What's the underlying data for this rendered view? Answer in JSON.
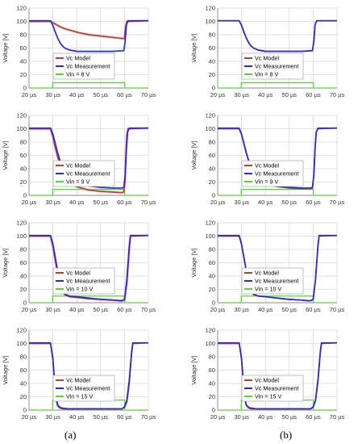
{
  "captions": [
    "(a)",
    "(b)"
  ],
  "colors": {
    "model": "#b0442a",
    "measurement": "#2a2ad0",
    "vin": "#55d63a",
    "glow": "#f5a0c8",
    "grid": "#d9d9d9",
    "axis": "#888888"
  },
  "chart_data": [
    {
      "type": "line",
      "panel": "a1",
      "xlabel": "",
      "ylabel": "Voltage [V]",
      "xlim": [
        20,
        70
      ],
      "ylim": [
        0,
        120
      ],
      "x_ticks": [
        "20 µs",
        "30 µs",
        "40 µs",
        "50 µs",
        "60 µs",
        "70 µs"
      ],
      "y_ticks": [
        "0",
        "20",
        "40",
        "60",
        "80",
        "100",
        "120"
      ],
      "grid": true,
      "legend": "top-center",
      "series": [
        {
          "name": "Vc Model",
          "x": [
            20,
            29,
            31,
            33,
            35,
            38,
            41,
            45,
            50,
            55,
            60,
            60.4,
            61,
            70
          ],
          "y": [
            100,
            100,
            96,
            92,
            89,
            86,
            83,
            80,
            78,
            76,
            74,
            90,
            100,
            101
          ]
        },
        {
          "name": "Vc Measurement",
          "x": [
            20,
            29,
            30,
            31,
            32,
            33,
            34,
            35,
            37,
            40,
            45,
            50,
            55,
            59.7,
            60.3,
            60.8,
            61.5,
            70
          ],
          "y": [
            101,
            101,
            94,
            84,
            75,
            68,
            63,
            60,
            57,
            55,
            55,
            55,
            55,
            56,
            70,
            95,
            101,
            101
          ]
        },
        {
          "name": "Vin = 8 V",
          "x": [
            20,
            29.9,
            29.9,
            60.1,
            60.1,
            70
          ],
          "y": [
            0,
            0,
            8,
            8,
            0,
            0
          ]
        }
      ]
    },
    {
      "type": "line",
      "panel": "b1",
      "xlabel": "",
      "ylabel": "Voltage [V]",
      "xlim": [
        20,
        70
      ],
      "ylim": [
        0,
        120
      ],
      "x_ticks": [
        "20 µs",
        "30 µs",
        "40 µs",
        "50 µs",
        "60 µs",
        "70 µs"
      ],
      "y_ticks": [
        "0",
        "20",
        "40",
        "60",
        "80",
        "100",
        "120"
      ],
      "grid": true,
      "legend": "top-center",
      "series": [
        {
          "name": "Vc Model",
          "x": [
            20,
            29,
            30,
            31,
            32,
            33,
            34,
            35,
            37,
            40,
            45,
            50,
            55,
            59.7,
            60.3,
            60.8,
            61.5,
            70
          ],
          "y": [
            101,
            101,
            94,
            84,
            75,
            68,
            63,
            60,
            57,
            55,
            55,
            55,
            55,
            56,
            70,
            95,
            101,
            101
          ]
        },
        {
          "name": "Vc Measurement",
          "x": [
            20,
            29,
            30,
            31,
            32,
            33,
            34,
            35,
            37,
            40,
            45,
            50,
            55,
            59.7,
            60.3,
            60.8,
            61.5,
            70
          ],
          "y": [
            101,
            101,
            94,
            84,
            75,
            68,
            63,
            60,
            57,
            55,
            55,
            55,
            55,
            56,
            70,
            95,
            101,
            101
          ]
        },
        {
          "name": "Vin = 8 V",
          "x": [
            20,
            29.9,
            29.9,
            60.1,
            60.1,
            70
          ],
          "y": [
            0,
            0,
            8,
            8,
            0,
            0
          ]
        }
      ]
    },
    {
      "type": "line",
      "panel": "a2",
      "xlabel": "",
      "ylabel": "Voltage [V]",
      "xlim": [
        20,
        70
      ],
      "ylim": [
        0,
        120
      ],
      "x_ticks": [
        "20 µs",
        "30 µs",
        "40 µs",
        "50 µs",
        "60 µs",
        "70 µs"
      ],
      "y_ticks": [
        "0",
        "20",
        "40",
        "60",
        "80",
        "100",
        "120"
      ],
      "grid": true,
      "legend": "top-center",
      "series": [
        {
          "name": "Vc Model",
          "x": [
            20,
            29,
            30,
            31,
            32,
            33,
            34,
            35,
            36,
            38,
            40,
            45,
            50,
            55,
            59,
            59.7,
            60.2,
            60.6,
            61,
            61.5,
            70
          ],
          "y": [
            100,
            100,
            88,
            72,
            58,
            46,
            37,
            30,
            25,
            18,
            13,
            8,
            6,
            5,
            4,
            5,
            20,
            60,
            90,
            100,
            101
          ]
        },
        {
          "name": "Vc Measurement",
          "x": [
            20,
            29,
            30,
            31,
            32,
            33,
            34,
            35,
            36,
            38,
            40,
            45,
            50,
            55,
            59,
            59.7,
            60.3,
            60.8,
            61.3,
            62,
            70
          ],
          "y": [
            101,
            101,
            92,
            78,
            64,
            52,
            42,
            35,
            29,
            22,
            18,
            14,
            12,
            11,
            11,
            12,
            30,
            70,
            95,
            101,
            101
          ]
        },
        {
          "name": "Vin = 9 V",
          "x": [
            20,
            29.9,
            29.9,
            60.1,
            60.1,
            70
          ],
          "y": [
            0,
            0,
            9,
            9,
            0,
            0
          ]
        }
      ]
    },
    {
      "type": "line",
      "panel": "b2",
      "xlabel": "",
      "ylabel": "Voltage [V]",
      "xlim": [
        20,
        70
      ],
      "ylim": [
        0,
        120
      ],
      "x_ticks": [
        "20 µs",
        "30 µs",
        "40 µs",
        "50 µs",
        "60 µs",
        "70 µs"
      ],
      "y_ticks": [
        "0",
        "20",
        "40",
        "60",
        "80",
        "100",
        "120"
      ],
      "grid": true,
      "legend": "top-center",
      "series": [
        {
          "name": "Vc Model",
          "x": [
            20,
            29,
            30,
            31,
            32,
            33,
            34,
            35,
            36,
            38,
            40,
            45,
            50,
            55,
            59,
            59.7,
            60.3,
            60.8,
            61.3,
            62,
            70
          ],
          "y": [
            100,
            100,
            91,
            77,
            63,
            51,
            41,
            34,
            28,
            21,
            17,
            13,
            11,
            10,
            10,
            11,
            30,
            70,
            95,
            100,
            101
          ]
        },
        {
          "name": "Vc Measurement",
          "x": [
            20,
            29,
            30,
            31,
            32,
            33,
            34,
            35,
            36,
            38,
            40,
            45,
            50,
            55,
            59,
            59.7,
            60.3,
            60.8,
            61.3,
            62,
            70
          ],
          "y": [
            101,
            101,
            92,
            78,
            64,
            52,
            42,
            35,
            29,
            22,
            18,
            14,
            12,
            11,
            11,
            12,
            30,
            70,
            95,
            101,
            101
          ]
        },
        {
          "name": "Vin = 9 V",
          "x": [
            20,
            29.9,
            29.9,
            60.1,
            60.1,
            70
          ],
          "y": [
            0,
            0,
            9,
            9,
            0,
            0
          ]
        }
      ]
    },
    {
      "type": "line",
      "panel": "a3",
      "xlabel": "",
      "ylabel": "Voltage [V]",
      "xlim": [
        20,
        70
      ],
      "ylim": [
        0,
        120
      ],
      "x_ticks": [
        "20 µs",
        "30 µs",
        "40 µs",
        "50 µs",
        "60 µs",
        "70 µs"
      ],
      "y_ticks": [
        "0",
        "20",
        "40",
        "60",
        "80",
        "100",
        "120"
      ],
      "grid": true,
      "legend": "top-center",
      "series": [
        {
          "name": "Vc Model",
          "x": [
            20,
            29,
            30,
            31,
            32,
            33,
            34,
            35,
            37,
            40,
            45,
            50,
            55,
            58,
            59,
            60,
            61,
            62,
            62.5,
            70
          ],
          "y": [
            100,
            100,
            85,
            64,
            44,
            28,
            17,
            12,
            9,
            8,
            6,
            5,
            4,
            3,
            3,
            4,
            30,
            80,
            100,
            101
          ]
        },
        {
          "name": "Vc Measurement",
          "x": [
            20,
            29,
            30,
            31,
            32,
            33,
            34,
            35,
            37,
            40,
            45,
            50,
            55,
            58,
            59,
            60,
            61,
            62,
            62.5,
            70
          ],
          "y": [
            101,
            101,
            88,
            68,
            48,
            31,
            19,
            13,
            10,
            9,
            7,
            5,
            4,
            3,
            3,
            5,
            35,
            85,
            101,
            101
          ]
        },
        {
          "name": "Vin = 10 V",
          "x": [
            20,
            29.9,
            29.9,
            60.1,
            60.1,
            70
          ],
          "y": [
            0,
            0,
            10,
            10,
            0,
            0
          ]
        }
      ]
    },
    {
      "type": "line",
      "panel": "b3",
      "xlabel": "",
      "ylabel": "Voltage [V]",
      "xlim": [
        20,
        70
      ],
      "ylim": [
        0,
        120
      ],
      "x_ticks": [
        "20 µs",
        "30 µs",
        "40 µs",
        "50 µs",
        "60 µs",
        "70 µs"
      ],
      "y_ticks": [
        "0",
        "20",
        "40",
        "60",
        "80",
        "100",
        "120"
      ],
      "grid": true,
      "legend": "top-center",
      "series": [
        {
          "name": "Vc Model",
          "x": [
            20,
            29,
            30,
            31,
            32,
            33,
            34,
            35,
            37,
            40,
            45,
            50,
            55,
            58,
            59,
            60,
            61,
            62,
            62.5,
            70
          ],
          "y": [
            100,
            100,
            87,
            67,
            47,
            30,
            18,
            12,
            10,
            9,
            7,
            5,
            4,
            3,
            3,
            5,
            35,
            85,
            100,
            101
          ]
        },
        {
          "name": "Vc Measurement",
          "x": [
            20,
            29,
            30,
            31,
            32,
            33,
            34,
            35,
            37,
            40,
            45,
            50,
            55,
            58,
            59,
            60,
            61,
            62,
            62.5,
            70
          ],
          "y": [
            101,
            101,
            88,
            68,
            48,
            31,
            19,
            13,
            10,
            9,
            7,
            5,
            4,
            3,
            3,
            5,
            35,
            85,
            101,
            101
          ]
        },
        {
          "name": "Vin = 10 V",
          "x": [
            20,
            29.9,
            29.9,
            60.1,
            60.1,
            70
          ],
          "y": [
            0,
            0,
            10,
            10,
            0,
            0
          ]
        }
      ]
    },
    {
      "type": "line",
      "panel": "a4",
      "xlabel": "",
      "ylabel": "Voltage [V]",
      "xlim": [
        20,
        70
      ],
      "ylim": [
        0,
        120
      ],
      "x_ticks": [
        "20 µs",
        "30 µs",
        "40 µs",
        "50 µs",
        "60 µs",
        "70 µs"
      ],
      "y_ticks": [
        "0",
        "20",
        "40",
        "60",
        "80",
        "100",
        "120"
      ],
      "grid": true,
      "legend": "top-center",
      "series": [
        {
          "name": "Vc Model",
          "x": [
            20,
            29,
            30,
            30.7,
            31.4,
            32,
            33,
            34,
            36,
            40,
            50,
            58,
            59,
            60,
            61,
            62,
            63,
            63.5,
            70
          ],
          "y": [
            100,
            100,
            75,
            40,
            15,
            6,
            3,
            2,
            2,
            2,
            2,
            2,
            2,
            4,
            12,
            40,
            85,
            100,
            101
          ]
        },
        {
          "name": "Vc Measurement",
          "x": [
            20,
            29,
            30,
            30.7,
            31.4,
            32,
            33,
            34,
            36,
            40,
            50,
            58,
            59,
            60,
            61,
            62,
            63,
            63.5,
            70
          ],
          "y": [
            101,
            101,
            78,
            44,
            18,
            8,
            4,
            3,
            2,
            2,
            2,
            2,
            2,
            5,
            15,
            45,
            88,
            101,
            101
          ]
        },
        {
          "name": "Vin = 15 V",
          "x": [
            20,
            29.9,
            29.9,
            60.1,
            60.1,
            70
          ],
          "y": [
            0,
            0,
            15,
            15,
            0,
            0
          ]
        }
      ]
    },
    {
      "type": "line",
      "panel": "b4",
      "xlabel": "",
      "ylabel": "Voltage [V]",
      "xlim": [
        20,
        70
      ],
      "ylim": [
        0,
        120
      ],
      "x_ticks": [
        "20 µs",
        "30 µs",
        "40 µs",
        "50 µs",
        "60 µs",
        "70 µs"
      ],
      "y_ticks": [
        "0",
        "20",
        "40",
        "60",
        "80",
        "100",
        "120"
      ],
      "grid": true,
      "legend": "top-center",
      "series": [
        {
          "name": "Vc Model",
          "x": [
            20,
            29,
            30,
            30.7,
            31.4,
            32,
            33,
            34,
            36,
            40,
            50,
            58,
            59,
            60,
            61,
            62,
            63,
            63.5,
            70
          ],
          "y": [
            100,
            100,
            76,
            42,
            16,
            7,
            3,
            2,
            2,
            2,
            2,
            2,
            2,
            4,
            14,
            42,
            86,
            100,
            101
          ]
        },
        {
          "name": "Vc Measurement",
          "x": [
            20,
            29,
            30,
            30.7,
            31.4,
            32,
            33,
            34,
            36,
            40,
            50,
            58,
            59,
            60,
            61,
            62,
            63,
            63.5,
            70
          ],
          "y": [
            101,
            101,
            78,
            44,
            18,
            8,
            4,
            3,
            2,
            2,
            2,
            2,
            2,
            5,
            15,
            45,
            88,
            101,
            101
          ]
        },
        {
          "name": "Vin = 15 V",
          "x": [
            20,
            29.9,
            29.9,
            60.1,
            60.1,
            70
          ],
          "y": [
            0,
            0,
            15,
            15,
            0,
            0
          ]
        }
      ]
    }
  ]
}
